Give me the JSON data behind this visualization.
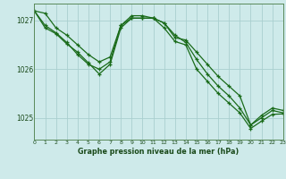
{
  "title": "Graphe pression niveau de la mer (hPa)",
  "bg_color": "#ceeaea",
  "grid_color": "#aacfcf",
  "line_color": "#1a6b1a",
  "xlim": [
    0,
    23
  ],
  "ylim": [
    1024.55,
    1027.35
  ],
  "yticks": [
    1025,
    1026,
    1027
  ],
  "xticks": [
    0,
    1,
    2,
    3,
    4,
    5,
    6,
    7,
    8,
    9,
    10,
    11,
    12,
    13,
    14,
    15,
    16,
    17,
    18,
    19,
    20,
    21,
    22,
    23
  ],
  "series1": {
    "x": [
      0,
      1,
      2,
      3,
      4,
      5,
      6,
      7,
      8,
      9,
      10,
      11,
      12,
      13,
      14,
      15,
      16,
      17,
      18,
      19,
      20,
      21,
      22,
      23
    ],
    "y": [
      1027.2,
      1027.15,
      1026.85,
      1026.7,
      1026.5,
      1026.3,
      1026.15,
      1026.25,
      1026.9,
      1027.1,
      1027.1,
      1027.05,
      1026.95,
      1026.65,
      1026.6,
      1026.35,
      1026.1,
      1025.85,
      1025.65,
      1025.45,
      1024.85,
      1025.05,
      1025.2,
      1025.15
    ]
  },
  "series2": {
    "x": [
      0,
      1,
      2,
      3,
      4,
      5,
      6,
      7,
      8,
      9,
      10,
      11,
      12,
      13,
      14,
      15,
      16,
      17,
      18,
      19,
      20,
      21,
      22,
      23
    ],
    "y": [
      1027.2,
      1026.9,
      1026.75,
      1026.55,
      1026.3,
      1026.1,
      1026.0,
      1026.15,
      1026.9,
      1027.05,
      1027.05,
      1027.05,
      1026.95,
      1026.7,
      1026.55,
      1026.2,
      1025.9,
      1025.65,
      1025.45,
      1025.2,
      1024.85,
      1025.0,
      1025.15,
      1025.1
    ]
  },
  "series3": {
    "x": [
      0,
      1,
      2,
      3,
      4,
      5,
      6,
      7,
      8,
      9,
      10,
      11,
      12,
      13,
      14,
      15,
      16,
      17,
      18,
      19,
      20,
      21,
      22,
      23
    ],
    "y": [
      1027.2,
      1026.85,
      1026.73,
      1026.52,
      1026.35,
      1026.13,
      1025.9,
      1026.1,
      1026.85,
      1027.05,
      1027.05,
      1027.05,
      1026.85,
      1026.57,
      1026.5,
      1026.0,
      1025.75,
      1025.5,
      1025.3,
      1025.1,
      1024.78,
      1024.93,
      1025.07,
      1025.08
    ]
  }
}
